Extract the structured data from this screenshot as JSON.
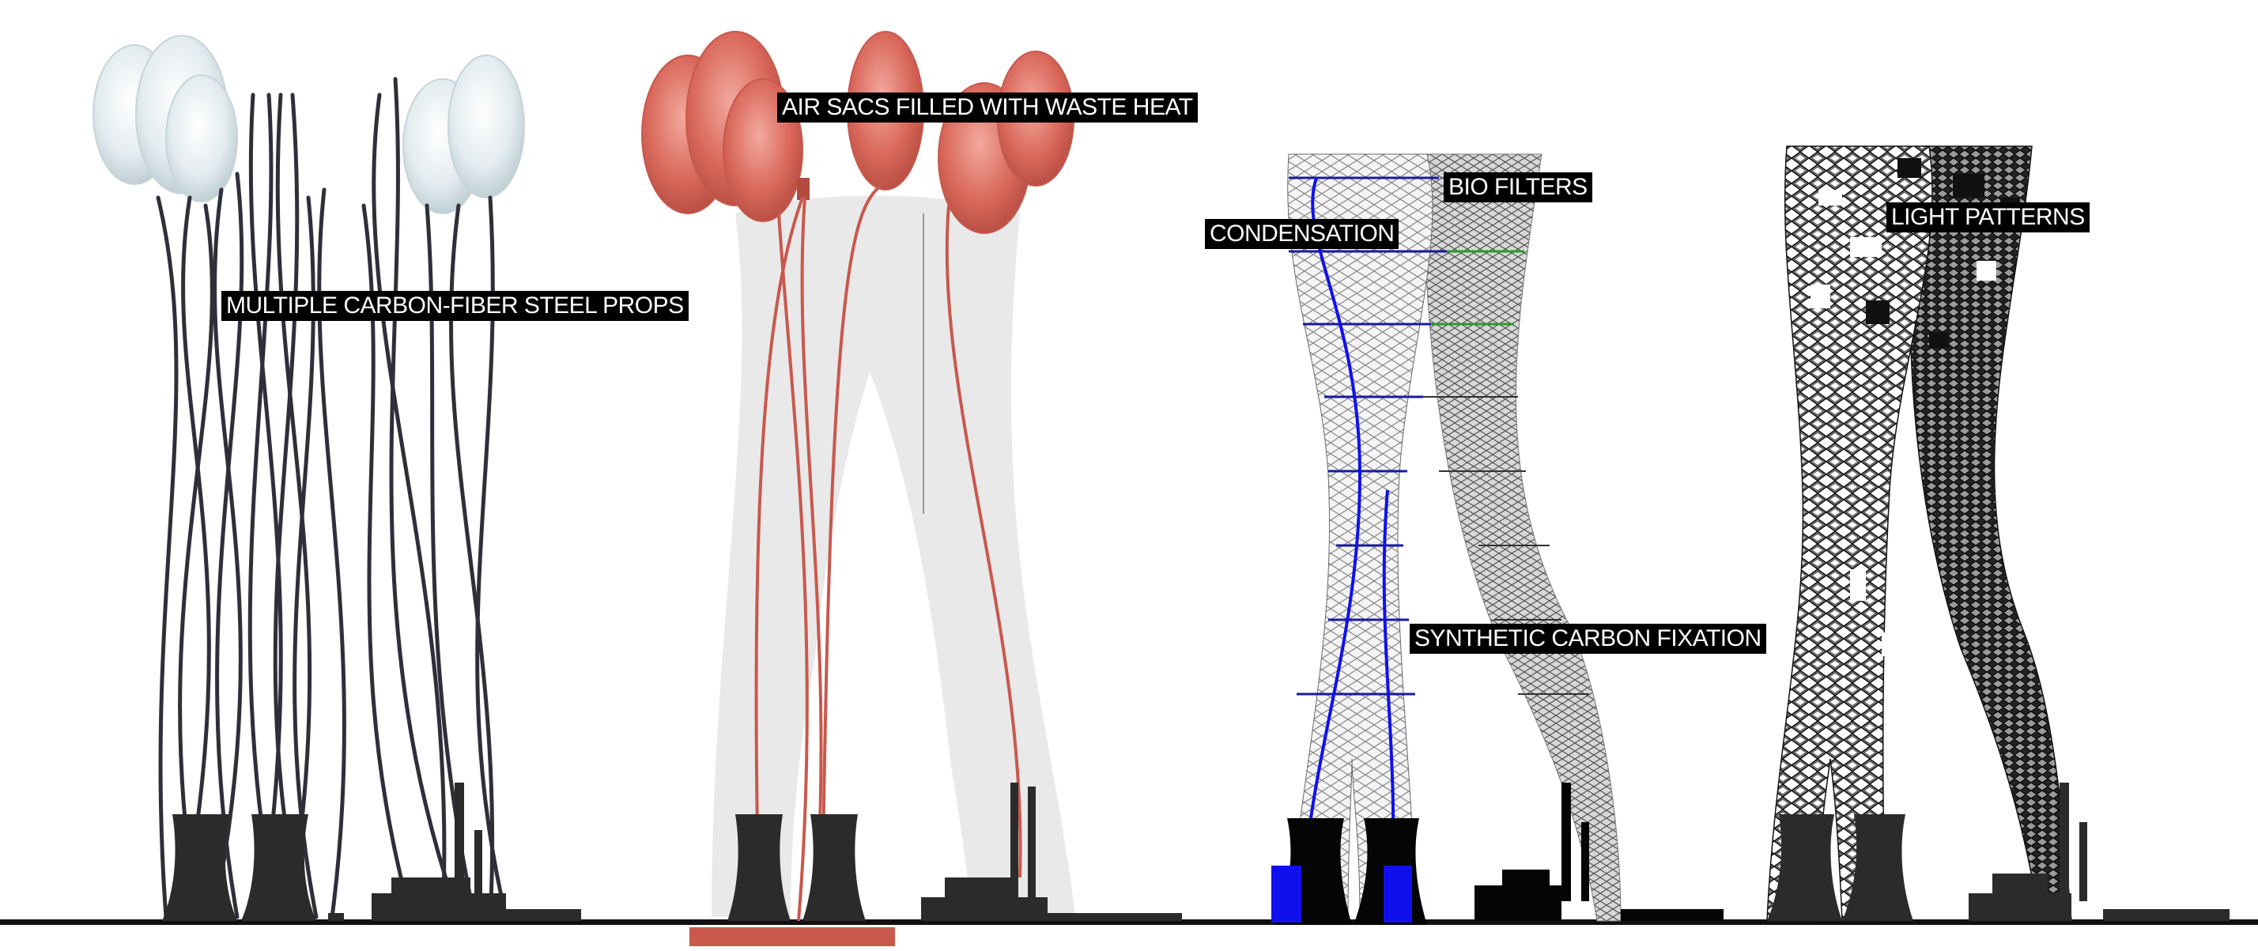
{
  "labels": {
    "props": "MULTIPLE CARBON-FIBER STEEL PROPS",
    "air_sacs": "AIR SACS FILLED WITH WASTE HEAT",
    "bio_filters": "BIO FILTERS",
    "condensation": "CONDENSATION",
    "carbon_fixation": "SYNTHETIC CARBON FIXATION",
    "light_patterns": "LIGHT PATTERNS"
  },
  "colors": {
    "props": "#2f2f3a",
    "sac_white": "#dde8ec",
    "sac_red": "#d66a5e",
    "red_line": "#c9584d",
    "blue": "#1010ee",
    "green": "#2a9a2a",
    "industry": "#2b2b2b",
    "ghost": "#e9e9e9"
  }
}
